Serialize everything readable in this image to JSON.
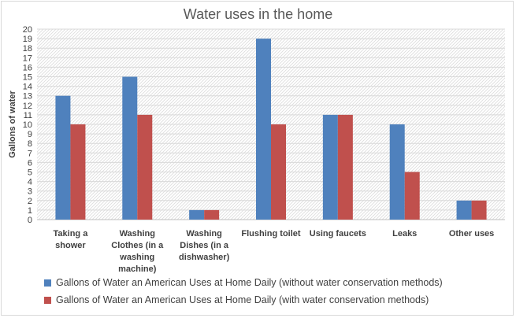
{
  "chart_data": {
    "type": "bar",
    "title": "Water uses in the home",
    "xlabel": "",
    "ylabel": "Gallons of water",
    "ylim": [
      0,
      20
    ],
    "yticks": [
      0,
      1,
      2,
      3,
      4,
      5,
      6,
      7,
      8,
      9,
      10,
      11,
      12,
      13,
      14,
      15,
      16,
      17,
      18,
      19,
      20
    ],
    "categories": [
      [
        "Taking a",
        "shower"
      ],
      [
        "Washing",
        "Clothes (in a",
        "washing",
        "machine)"
      ],
      [
        "Washing",
        "Dishes (in a",
        "dishwasher)"
      ],
      [
        "Flushing toilet"
      ],
      [
        "Using faucets"
      ],
      [
        "Leaks"
      ],
      [
        "Other uses"
      ]
    ],
    "series": [
      {
        "name": "Gallons of Water an American Uses at Home Daily (without water conservation methods)",
        "color": "#4f81bd",
        "values": [
          13,
          15,
          1,
          19,
          11,
          10,
          2
        ]
      },
      {
        "name": "Gallons of Water an American Uses at Home Daily (with water conservation methods)",
        "color": "#c0504d",
        "values": [
          10,
          11,
          1,
          10,
          11,
          5,
          2
        ]
      }
    ],
    "grid": true,
    "legend_position": "bottom-left"
  }
}
